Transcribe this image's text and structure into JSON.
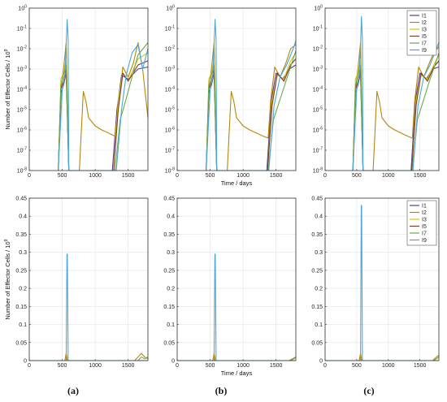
{
  "figure": {
    "panel_labels": [
      "(a)",
      "(b)",
      "(c)"
    ],
    "colors": {
      "I1": "#5a3d8f",
      "I2": "#b8860b",
      "I3": "#d4c400",
      "I5": "#7a3b2e",
      "I7": "#6aa84f",
      "I9": "#4aa8d8"
    }
  },
  "chart_data": [
    {
      "panel": "(a)",
      "type": "line",
      "scale": "log",
      "xlim": [
        0,
        1800
      ],
      "ylim_exp": [
        -8,
        0
      ],
      "xticks": [
        "0",
        "500",
        "1000",
        "1500"
      ],
      "yticks": [
        "10^-8",
        "10^-7",
        "10^-6",
        "10^-5",
        "10^-4",
        "10^-3",
        "10^-2",
        "10^-1",
        "10^0"
      ],
      "xlabel": "",
      "ylabel": "Number of Effector Cells / 10^9",
      "grid": true,
      "legend": [],
      "series": [
        {
          "name": "I1",
          "x": [
            440,
            480,
            520,
            560,
            600,
            1260,
            1330,
            1400,
            1500,
            1650,
            1800
          ],
          "y": [
            -8,
            -4.2,
            -3.8,
            -3.2,
            -8,
            -8,
            -5,
            -3.3,
            -3.5,
            -3.0,
            -2.9
          ]
        },
        {
          "name": "I2",
          "x": [
            440,
            480,
            520,
            560,
            600,
            760,
            820,
            860,
            900,
            1000,
            1100,
            1200,
            1300,
            1360,
            1420,
            1500,
            1580,
            1650,
            1720,
            1800
          ],
          "y": [
            -8,
            -4.0,
            -3.0,
            -1.7,
            -8,
            -8,
            -4.1,
            -4.6,
            -5.4,
            -5.8,
            -6.0,
            -6.15,
            -6.3,
            -4.5,
            -2.9,
            -3.4,
            -2.7,
            -1.7,
            -3.0,
            -5.4
          ]
        },
        {
          "name": "I3",
          "x": [
            440,
            480,
            520,
            560,
            600,
            1280,
            1350,
            1420,
            1500,
            1650,
            1800
          ],
          "y": [
            -8,
            -3.5,
            -3.2,
            -2.5,
            -8,
            -8,
            -4.5,
            -3.2,
            -3.6,
            -2.5,
            -2.2
          ]
        },
        {
          "name": "I5",
          "x": [
            440,
            480,
            520,
            560,
            600,
            1280,
            1350,
            1420,
            1500,
            1650,
            1800
          ],
          "y": [
            -8,
            -4.0,
            -3.6,
            -3.0,
            -8,
            -8,
            -5,
            -3.2,
            -3.6,
            -2.8,
            -2.6
          ]
        },
        {
          "name": "I7",
          "x": [
            440,
            480,
            520,
            560,
            600,
            1300,
            1380,
            1450,
            1550,
            1650,
            1800
          ],
          "y": [
            -8,
            -3.8,
            -3.3,
            -2.8,
            -8,
            -8,
            -5.5,
            -4.7,
            -3.5,
            -2.3,
            -1.7
          ]
        },
        {
          "name": "I9",
          "x": [
            440,
            500,
            540,
            570,
            575,
            590,
            600,
            1320,
            1400,
            1470,
            1560,
            1650,
            1720,
            1800
          ],
          "y": [
            -8,
            -4.0,
            -3.4,
            -1.0,
            -0.55,
            -1.5,
            -8,
            -8,
            -5,
            -3.3,
            -2.2,
            -1.8,
            -3.0,
            -2.0
          ]
        }
      ]
    },
    {
      "panel": "(b)",
      "type": "line",
      "scale": "log",
      "xlim": [
        0,
        1800
      ],
      "ylim_exp": [
        -8,
        0
      ],
      "xticks": [
        "0",
        "500",
        "1000",
        "1500"
      ],
      "yticks": [
        "10^-8",
        "10^-7",
        "10^-6",
        "10^-5",
        "10^-4",
        "10^-3",
        "10^-2",
        "10^-1",
        "10^0"
      ],
      "xlabel": "Time / days",
      "ylabel": "",
      "grid": true,
      "legend": [],
      "series": [
        {
          "name": "I1",
          "x": [
            440,
            480,
            520,
            560,
            600,
            1360,
            1430,
            1500,
            1600,
            1700,
            1800
          ],
          "y": [
            -8,
            -4.2,
            -3.8,
            -3.2,
            -8,
            -8,
            -4.5,
            -3.2,
            -3.5,
            -3.0,
            -2.8
          ]
        },
        {
          "name": "I2",
          "x": [
            440,
            480,
            520,
            560,
            600,
            760,
            820,
            860,
            900,
            1000,
            1100,
            1200,
            1300,
            1380,
            1420,
            1480,
            1560,
            1650,
            1720,
            1800
          ],
          "y": [
            -8,
            -4.0,
            -3.0,
            -1.7,
            -8,
            -8,
            -4.1,
            -4.6,
            -5.4,
            -5.8,
            -6.0,
            -6.15,
            -6.3,
            -6.4,
            -4.5,
            -2.9,
            -3.4,
            -2.7,
            -2.0,
            -1.8
          ]
        },
        {
          "name": "I3",
          "x": [
            440,
            480,
            520,
            560,
            600,
            1370,
            1440,
            1520,
            1620,
            1720,
            1800
          ],
          "y": [
            -8,
            -3.5,
            -3.2,
            -2.5,
            -8,
            -8,
            -4.5,
            -3.3,
            -3.5,
            -2.6,
            -2.2
          ]
        },
        {
          "name": "I5",
          "x": [
            440,
            480,
            520,
            560,
            600,
            1370,
            1440,
            1520,
            1620,
            1720,
            1800
          ],
          "y": [
            -8,
            -4.0,
            -3.6,
            -3.0,
            -8,
            -8,
            -4.8,
            -3.2,
            -3.6,
            -2.8,
            -2.5
          ]
        },
        {
          "name": "I7",
          "x": [
            440,
            480,
            520,
            560,
            600,
            1380,
            1460,
            1550,
            1650,
            1750,
            1800
          ],
          "y": [
            -8,
            -3.8,
            -3.3,
            -2.8,
            -8,
            -8,
            -5.5,
            -4.6,
            -3.6,
            -2.6,
            -2.1
          ]
        },
        {
          "name": "I9",
          "x": [
            440,
            500,
            540,
            570,
            575,
            590,
            600,
            1390,
            1470,
            1560,
            1660,
            1760,
            1800
          ],
          "y": [
            -8,
            -4.0,
            -3.4,
            -1.0,
            -0.55,
            -1.5,
            -8,
            -8,
            -4.8,
            -3.4,
            -2.8,
            -2.0,
            -1.6
          ]
        }
      ]
    },
    {
      "panel": "(c)",
      "type": "line",
      "scale": "log",
      "xlim": [
        0,
        1800
      ],
      "ylim_exp": [
        -8,
        0
      ],
      "xticks": [
        "0",
        "500",
        "1000",
        "1500"
      ],
      "yticks": [
        "10^-8",
        "10^-7",
        "10^-6",
        "10^-5",
        "10^-4",
        "10^-3",
        "10^-2",
        "10^-1",
        "10^0"
      ],
      "xlabel": "",
      "ylabel": "",
      "grid": true,
      "legend": [
        "I1",
        "I2",
        "I3",
        "I5",
        "I7",
        "I9"
      ],
      "series": [
        {
          "name": "I1",
          "x": [
            440,
            480,
            520,
            560,
            600,
            1360,
            1430,
            1500,
            1600,
            1700,
            1800
          ],
          "y": [
            -8,
            -4.2,
            -3.8,
            -3.2,
            -8,
            -8,
            -4.5,
            -3.2,
            -3.5,
            -3.0,
            -2.9
          ]
        },
        {
          "name": "I2",
          "x": [
            440,
            480,
            520,
            560,
            600,
            760,
            820,
            860,
            900,
            1000,
            1100,
            1200,
            1300,
            1380,
            1420,
            1480,
            1560,
            1650,
            1720,
            1800
          ],
          "y": [
            -8,
            -4.0,
            -3.0,
            -1.7,
            -8,
            -8,
            -4.1,
            -4.6,
            -5.4,
            -5.8,
            -6.0,
            -6.15,
            -6.3,
            -6.4,
            -4.5,
            -2.9,
            -3.4,
            -2.7,
            -2.2,
            -1.9
          ]
        },
        {
          "name": "I3",
          "x": [
            440,
            480,
            520,
            560,
            600,
            1370,
            1440,
            1520,
            1620,
            1720,
            1800
          ],
          "y": [
            -8,
            -3.5,
            -3.2,
            -2.5,
            -8,
            -8,
            -4.5,
            -3.3,
            -3.5,
            -2.8,
            -2.3
          ]
        },
        {
          "name": "I5",
          "x": [
            440,
            480,
            520,
            560,
            600,
            1370,
            1440,
            1520,
            1620,
            1720,
            1800
          ],
          "y": [
            -8,
            -4.0,
            -3.6,
            -3.0,
            -8,
            -8,
            -4.8,
            -3.2,
            -3.6,
            -2.9,
            -2.6
          ]
        },
        {
          "name": "I7",
          "x": [
            440,
            480,
            520,
            560,
            600,
            1380,
            1460,
            1550,
            1650,
            1750,
            1800
          ],
          "y": [
            -8,
            -3.8,
            -3.3,
            -2.8,
            -8,
            -8,
            -5.5,
            -4.6,
            -3.6,
            -2.7,
            -2.2
          ]
        },
        {
          "name": "I9",
          "x": [
            440,
            500,
            540,
            570,
            575,
            590,
            600,
            1390,
            1470,
            1560,
            1660,
            1760,
            1800
          ],
          "y": [
            -8,
            -4.0,
            -3.4,
            -1.0,
            -0.4,
            -1.5,
            -8,
            -8,
            -4.8,
            -3.4,
            -2.8,
            -2.0,
            -1.7
          ]
        }
      ]
    },
    {
      "panel": "(a)",
      "type": "line",
      "scale": "linear",
      "xlim": [
        0,
        1800
      ],
      "ylim": [
        0,
        0.45
      ],
      "xticks": [
        "0",
        "500",
        "1000",
        "1500"
      ],
      "yticks": [
        "0",
        "0.05",
        "0.1",
        "0.15",
        "0.2",
        "0.25",
        "0.3",
        "0.35",
        "0.4",
        "0.45"
      ],
      "xlabel": "",
      "ylabel": "Number of Effector Cells / 10^9",
      "grid": true,
      "legend": [],
      "series": [
        {
          "name": "I1",
          "x": [
            0,
            1800
          ],
          "y": [
            0,
            0
          ]
        },
        {
          "name": "I2",
          "x": [
            0,
            540,
            560,
            580,
            1600,
            1650,
            1700,
            1750,
            1800
          ],
          "y": [
            0,
            0,
            0.02,
            0,
            0,
            0.01,
            0.02,
            0.01,
            0.005
          ]
        },
        {
          "name": "I3",
          "x": [
            0,
            1800
          ],
          "y": [
            0,
            0
          ]
        },
        {
          "name": "I5",
          "x": [
            0,
            1800
          ],
          "y": [
            0,
            0
          ]
        },
        {
          "name": "I7",
          "x": [
            0,
            1650,
            1700,
            1750,
            1800
          ],
          "y": [
            0,
            0,
            0.01,
            0.005,
            0.01
          ]
        },
        {
          "name": "I9",
          "x": [
            0,
            560,
            572,
            578,
            590,
            1800
          ],
          "y": [
            0,
            0,
            0.295,
            0.295,
            0,
            0
          ]
        }
      ]
    },
    {
      "panel": "(b)",
      "type": "line",
      "scale": "linear",
      "xlim": [
        0,
        1800
      ],
      "ylim": [
        0,
        0.45
      ],
      "xticks": [
        "0",
        "500",
        "1000",
        "1500"
      ],
      "yticks": [
        "0",
        "0.05",
        "0.1",
        "0.15",
        "0.2",
        "0.25",
        "0.3",
        "0.35",
        "0.4",
        "0.45"
      ],
      "xlabel": "Time / days",
      "ylabel": "",
      "grid": true,
      "legend": [],
      "series": [
        {
          "name": "I1",
          "x": [
            0,
            1800
          ],
          "y": [
            0,
            0
          ]
        },
        {
          "name": "I2",
          "x": [
            0,
            540,
            560,
            580,
            1700,
            1750,
            1800
          ],
          "y": [
            0,
            0,
            0.02,
            0,
            0,
            0.005,
            0.01
          ]
        },
        {
          "name": "I3",
          "x": [
            0,
            1800
          ],
          "y": [
            0,
            0
          ]
        },
        {
          "name": "I5",
          "x": [
            0,
            1800
          ],
          "y": [
            0,
            0
          ]
        },
        {
          "name": "I7",
          "x": [
            0,
            1720,
            1800
          ],
          "y": [
            0,
            0,
            0.008
          ]
        },
        {
          "name": "I9",
          "x": [
            0,
            560,
            572,
            578,
            590,
            1800
          ],
          "y": [
            0,
            0,
            0.295,
            0.295,
            0,
            0
          ]
        }
      ]
    },
    {
      "panel": "(c)",
      "type": "line",
      "scale": "linear",
      "xlim": [
        0,
        1800
      ],
      "ylim": [
        0,
        0.45
      ],
      "xticks": [
        "0",
        "500",
        "1000",
        "1500"
      ],
      "yticks": [
        "0",
        "0.05",
        "0.1",
        "0.15",
        "0.2",
        "0.25",
        "0.3",
        "0.35",
        "0.4",
        "0.45"
      ],
      "xlabel": "",
      "ylabel": "",
      "grid": true,
      "legend": [
        "I1",
        "I2",
        "I3",
        "I5",
        "I7",
        "I9"
      ],
      "series": [
        {
          "name": "I1",
          "x": [
            0,
            1800
          ],
          "y": [
            0,
            0
          ]
        },
        {
          "name": "I2",
          "x": [
            0,
            540,
            560,
            580,
            1700,
            1750,
            1800
          ],
          "y": [
            0,
            0,
            0.02,
            0,
            0,
            0.008,
            0.015
          ]
        },
        {
          "name": "I3",
          "x": [
            0,
            1800
          ],
          "y": [
            0,
            0
          ]
        },
        {
          "name": "I5",
          "x": [
            0,
            1800
          ],
          "y": [
            0,
            0
          ]
        },
        {
          "name": "I7",
          "x": [
            0,
            1720,
            1800
          ],
          "y": [
            0,
            0,
            0.01
          ]
        },
        {
          "name": "I9",
          "x": [
            0,
            560,
            572,
            578,
            590,
            1800
          ],
          "y": [
            0,
            0,
            0.43,
            0.43,
            0,
            0
          ]
        }
      ]
    }
  ]
}
